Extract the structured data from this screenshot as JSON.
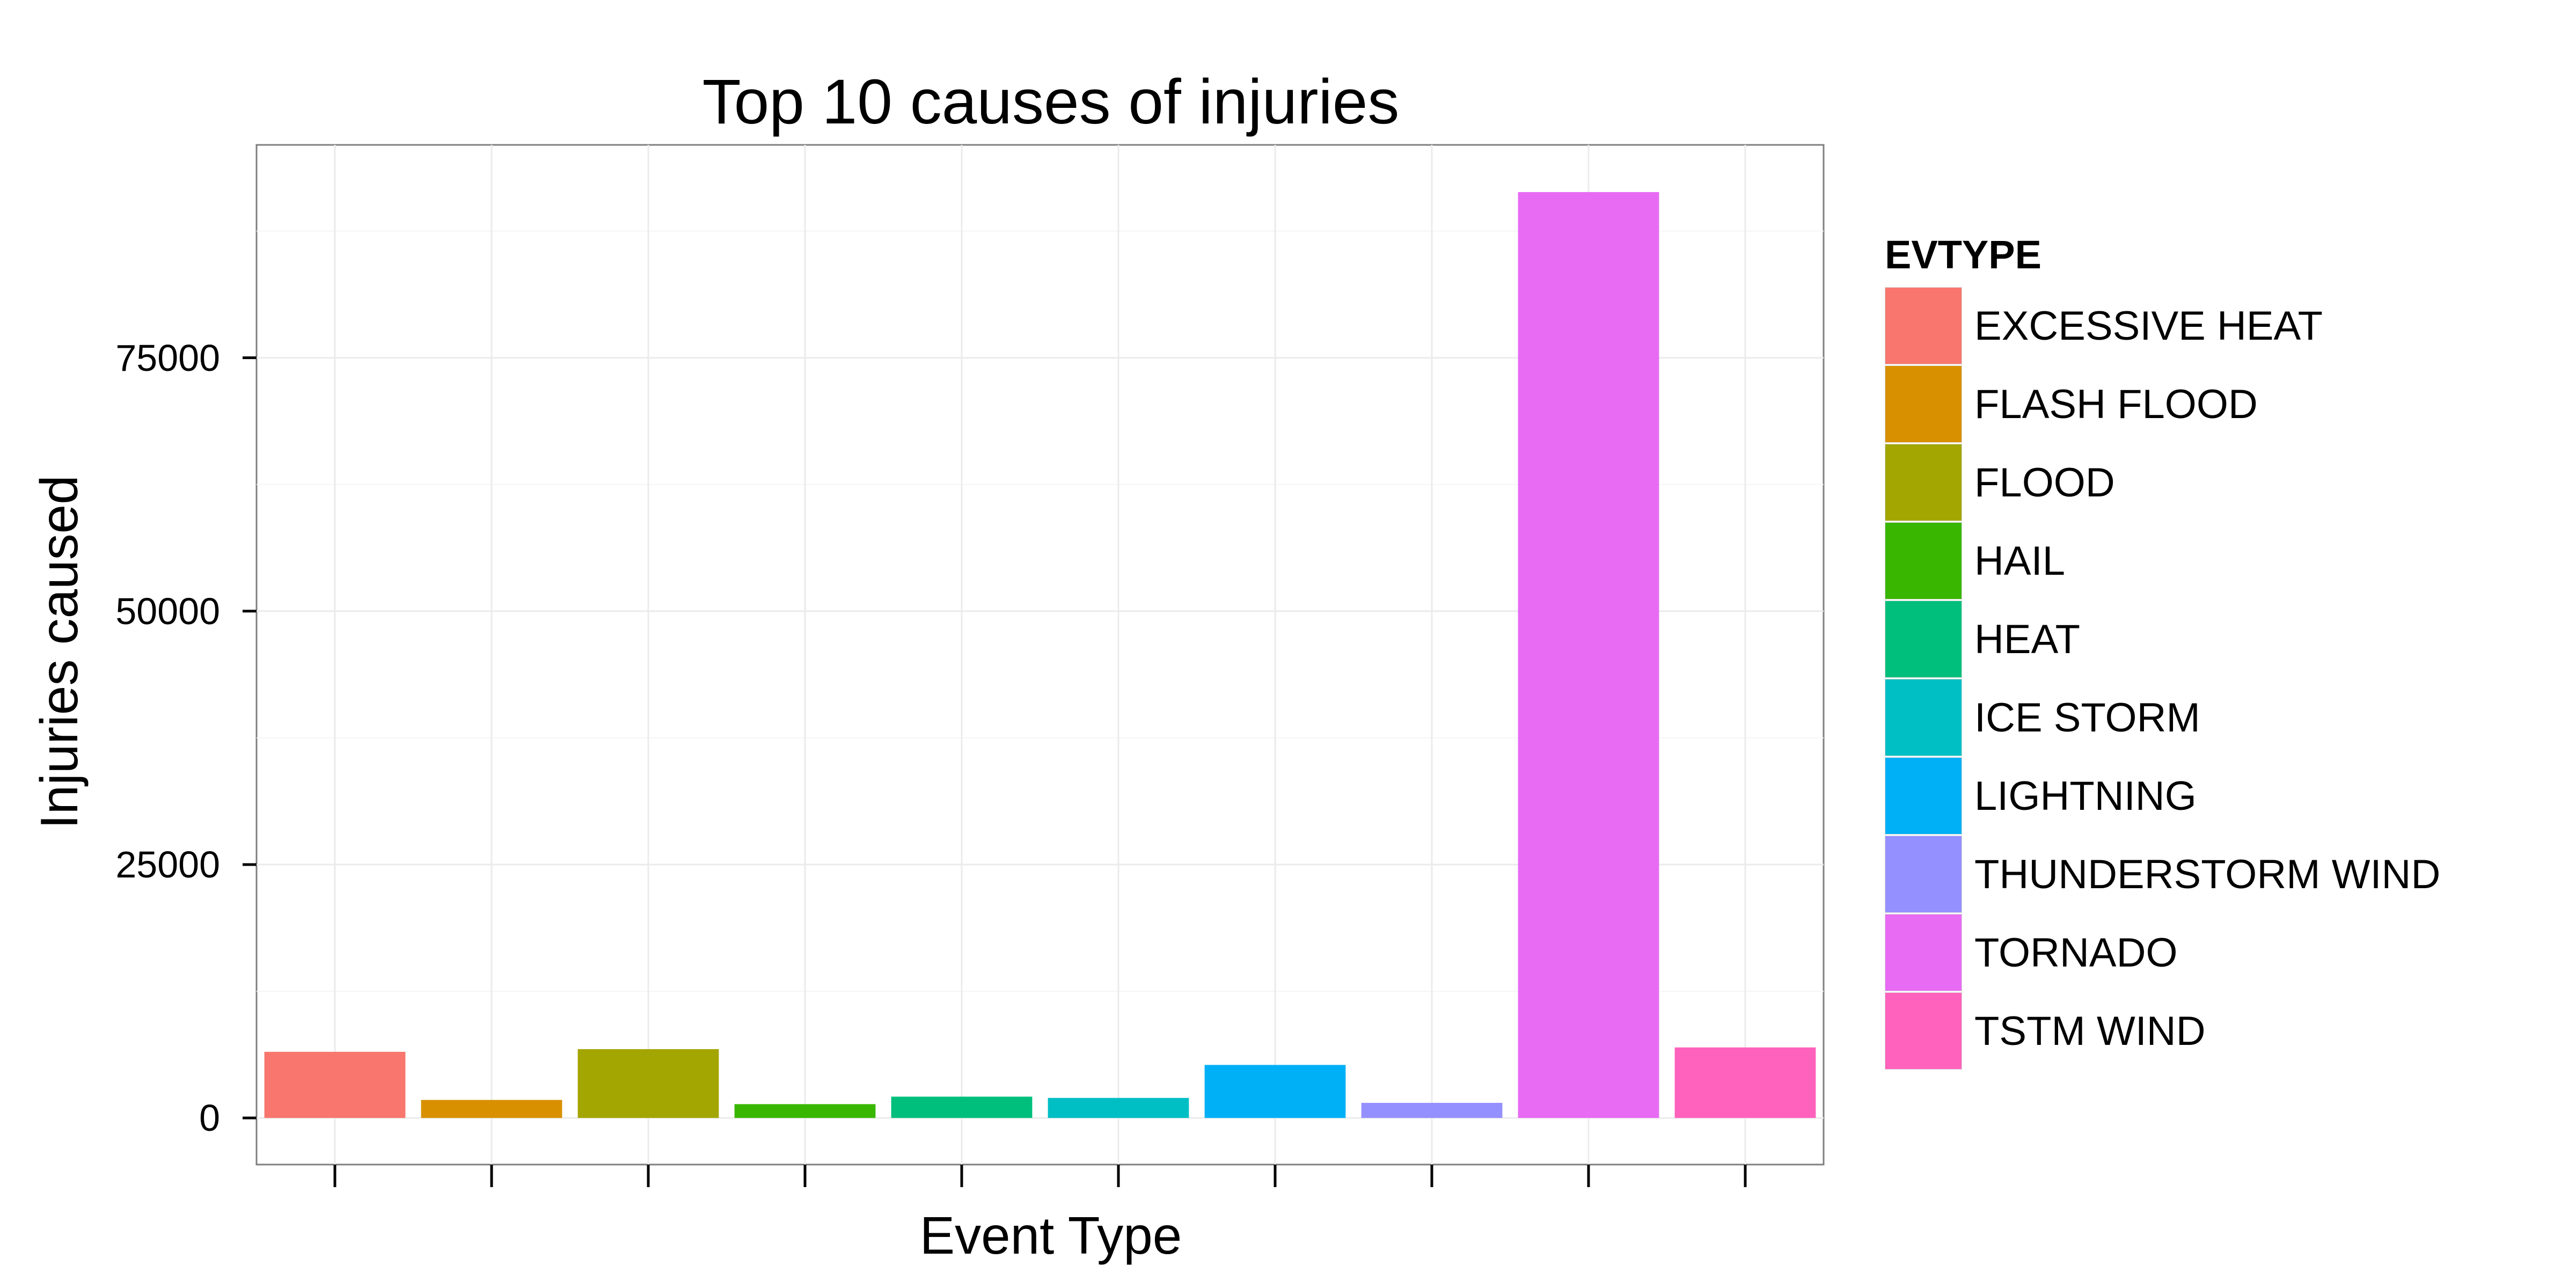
{
  "chart_data": {
    "type": "bar",
    "title": "Top 10 causes of injuries",
    "xlabel": "Event Type",
    "ylabel": "Injuries caused",
    "ylim": [
      -4600,
      96000
    ],
    "yticks": [
      0,
      25000,
      50000,
      75000
    ],
    "ytick_labels": [
      "0",
      "25000",
      "50000",
      "75000"
    ],
    "grid": true,
    "legend": {
      "title": "EVTYPE",
      "position": "right"
    },
    "categories": [
      "EXCESSIVE HEAT",
      "FLASH FLOOD",
      "FLOOD",
      "HAIL",
      "HEAT",
      "ICE STORM",
      "LIGHTNING",
      "THUNDERSTORM WIND",
      "TORNADO",
      "TSTM WIND"
    ],
    "values": [
      6525,
      1777,
      6789,
      1361,
      2100,
      1975,
      5230,
      1488,
      91346,
      6957
    ],
    "colors": [
      "#F8766D",
      "#D89000",
      "#A3A500",
      "#39B600",
      "#00BF7D",
      "#00BFC4",
      "#00B0F6",
      "#9590FF",
      "#E76BF3",
      "#FF62BC"
    ]
  }
}
